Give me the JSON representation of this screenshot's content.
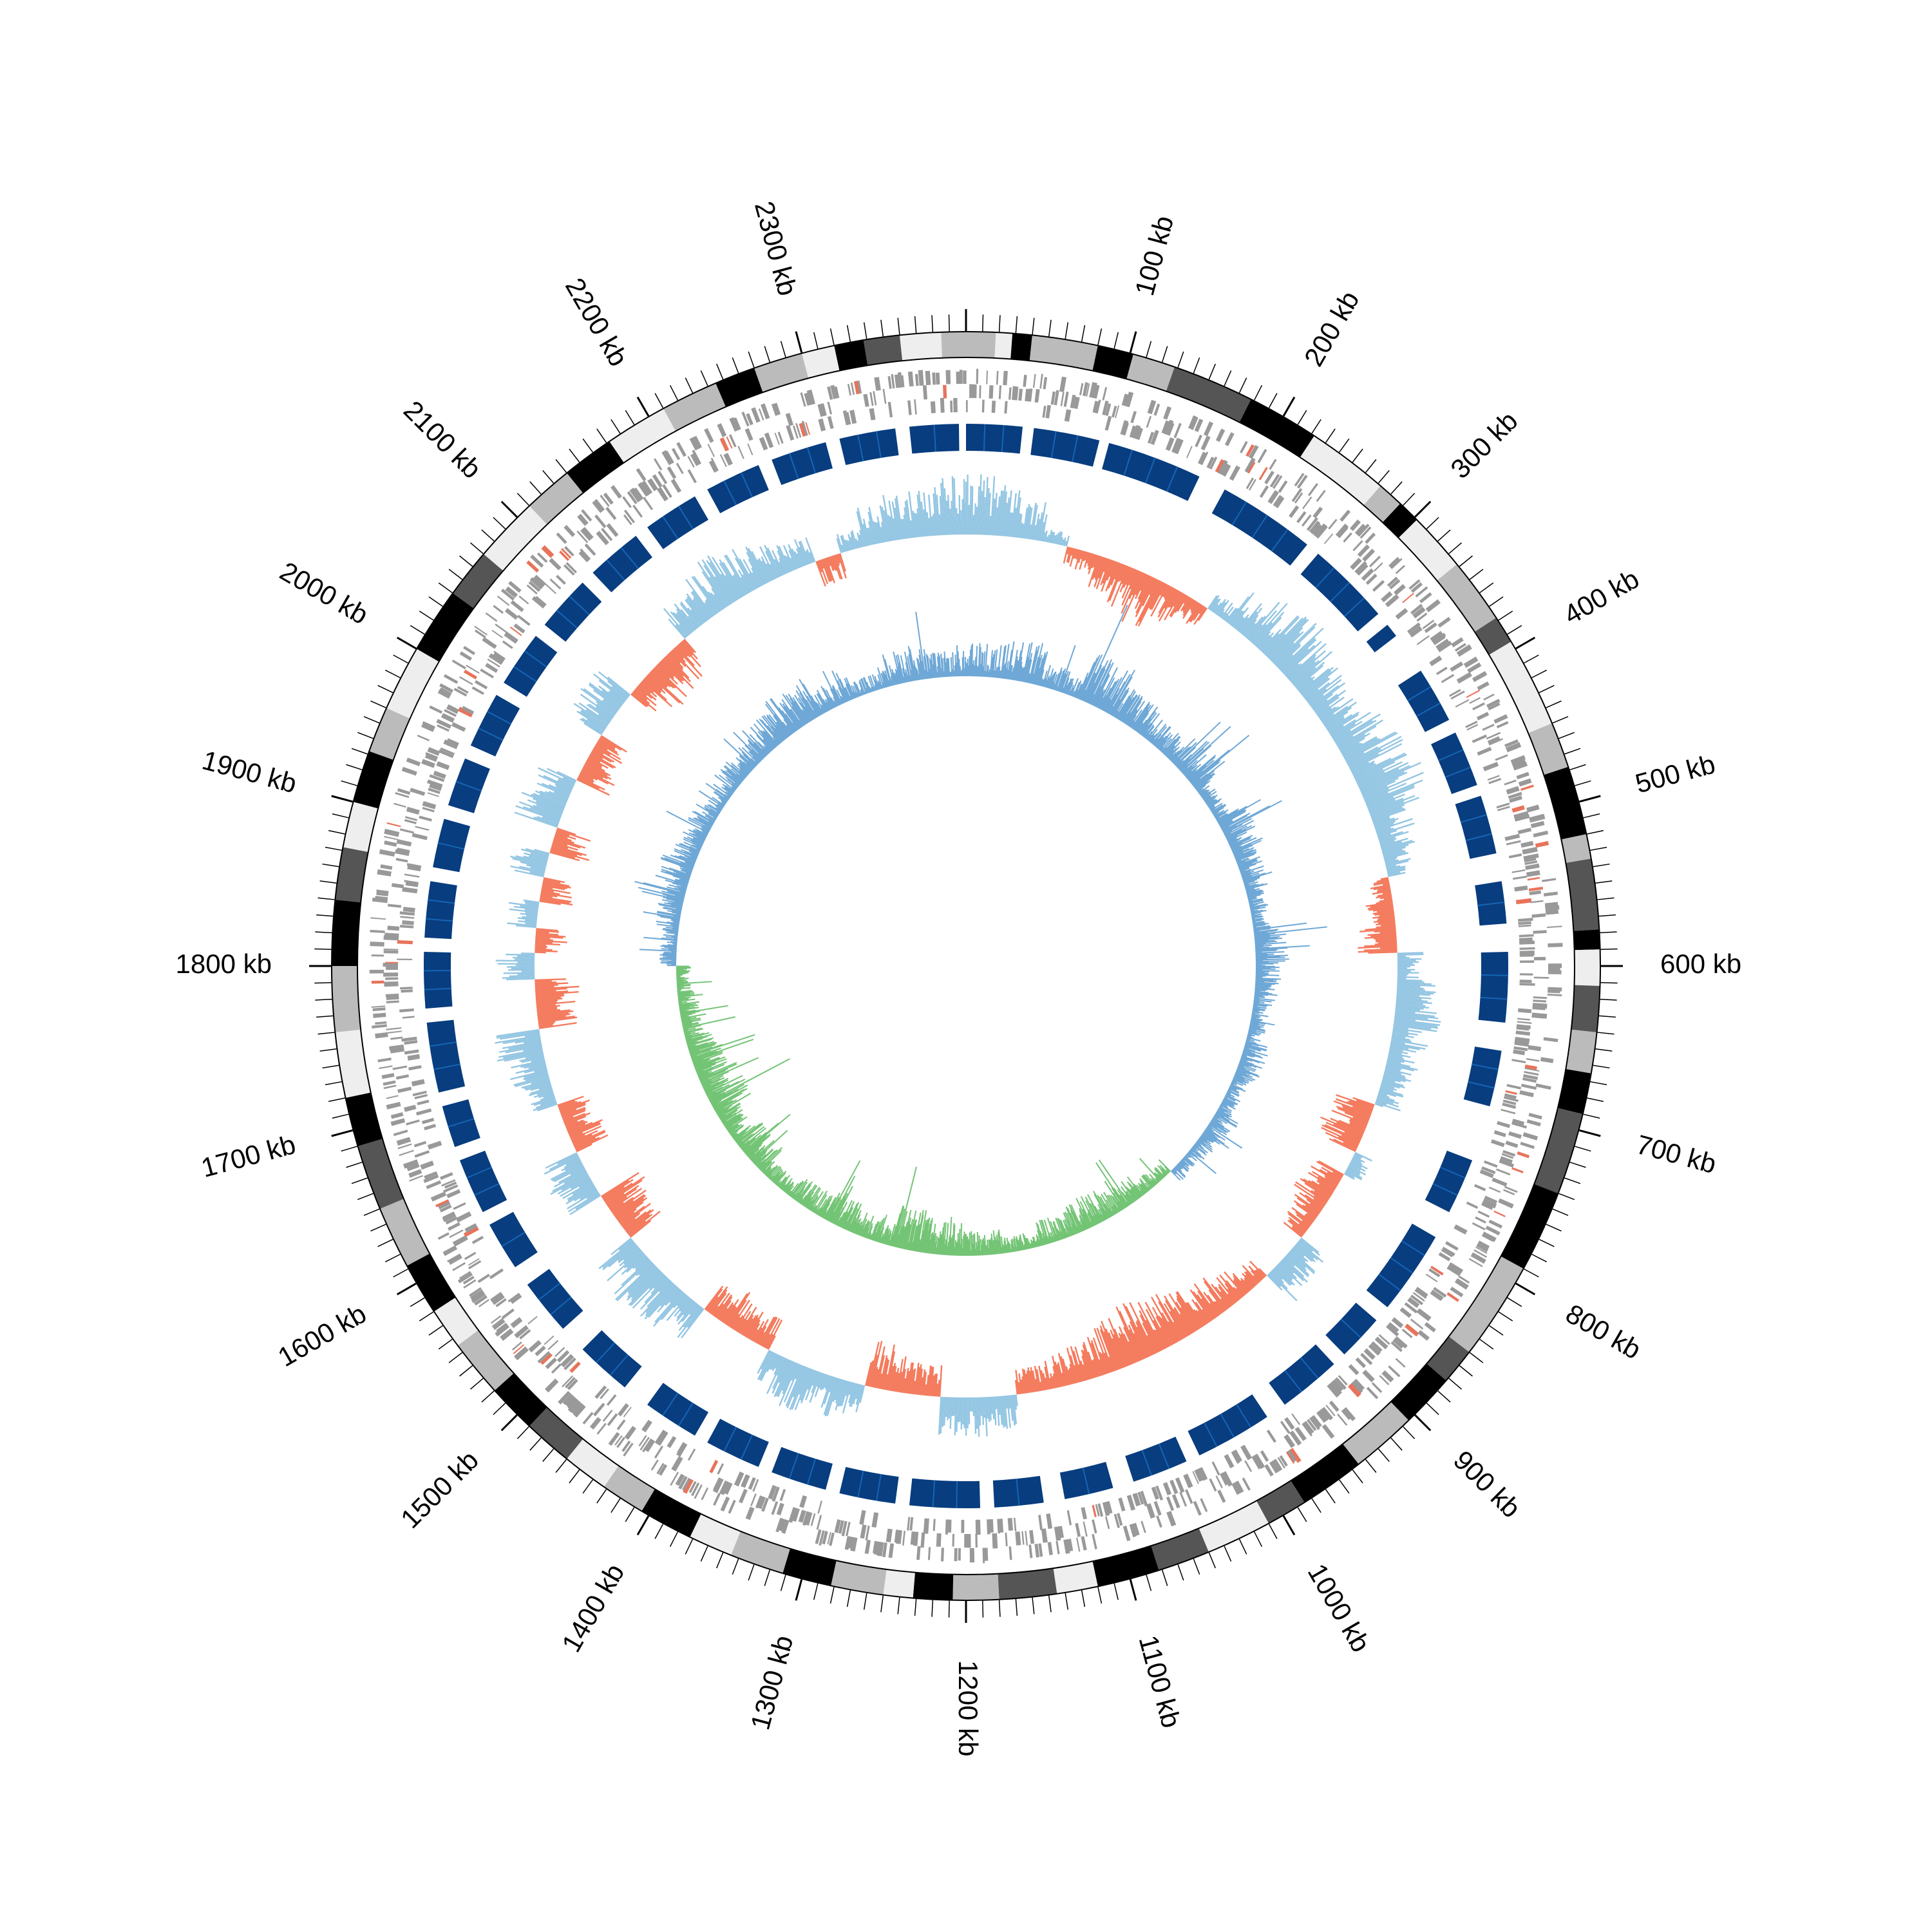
{
  "genome": {
    "length_kb": 2400,
    "tick_labels": [
      {
        "value_kb": 100,
        "text": "100 kb"
      },
      {
        "value_kb": 200,
        "text": "200 kb"
      },
      {
        "value_kb": 300,
        "text": "300 kb"
      },
      {
        "value_kb": 400,
        "text": "400 kb"
      },
      {
        "value_kb": 500,
        "text": "500 kb"
      },
      {
        "value_kb": 600,
        "text": "600 kb"
      },
      {
        "value_kb": 700,
        "text": "700 kb"
      },
      {
        "value_kb": 800,
        "text": "800 kb"
      },
      {
        "value_kb": 900,
        "text": "900 kb"
      },
      {
        "value_kb": 1000,
        "text": "1000 kb"
      },
      {
        "value_kb": 1100,
        "text": "1100 kb"
      },
      {
        "value_kb": 1200,
        "text": "1200 kb"
      },
      {
        "value_kb": 1300,
        "text": "1300 kb"
      },
      {
        "value_kb": 1400,
        "text": "1400 kb"
      },
      {
        "value_kb": 1500,
        "text": "1500 kb"
      },
      {
        "value_kb": 1600,
        "text": "1600 kb"
      },
      {
        "value_kb": 1700,
        "text": "1700 kb"
      },
      {
        "value_kb": 1800,
        "text": "1800 kb"
      },
      {
        "value_kb": 1900,
        "text": "1900 kb"
      },
      {
        "value_kb": 2000,
        "text": "2000 kb"
      },
      {
        "value_kb": 2100,
        "text": "2100 kb"
      },
      {
        "value_kb": 2200,
        "text": "2200 kb"
      },
      {
        "value_kb": 2300,
        "text": "2300 kb"
      }
    ],
    "minor_tick_step_kb": 10
  },
  "colors": {
    "ideogram_palette": [
      "#000000",
      "#555555",
      "#bbbbbb",
      "#eeeeee"
    ],
    "gene_features": "#999999",
    "gene_features_accent": "#e8735a",
    "blocks": "#083d7f",
    "blocks_alt": "#1565b5",
    "skew_positive": "#94c6e3",
    "skew_negative": "#f47b5e",
    "inner_positive": "#6fa8d6",
    "inner_negative": "#74c476"
  },
  "tracks": {
    "ideogram_bands": [
      [
        0,
        18,
        2
      ],
      [
        18,
        28,
        3
      ],
      [
        28,
        40,
        0
      ],
      [
        40,
        80,
        2
      ],
      [
        80,
        102,
        0
      ],
      [
        102,
        128,
        2
      ],
      [
        128,
        178,
        1
      ],
      [
        178,
        222,
        0
      ],
      [
        222,
        272,
        3
      ],
      [
        272,
        288,
        2
      ],
      [
        288,
        302,
        0
      ],
      [
        302,
        338,
        3
      ],
      [
        338,
        378,
        2
      ],
      [
        378,
        395,
        1
      ],
      [
        395,
        450,
        3
      ],
      [
        450,
        478,
        2
      ],
      [
        478,
        520,
        0
      ],
      [
        520,
        535,
        2
      ],
      [
        535,
        578,
        1
      ],
      [
        578,
        590,
        0
      ],
      [
        590,
        612,
        3
      ],
      [
        612,
        640,
        1
      ],
      [
        640,
        665,
        2
      ],
      [
        665,
        690,
        0
      ],
      [
        690,
        740,
        1
      ],
      [
        740,
        790,
        0
      ],
      [
        790,
        850,
        2
      ],
      [
        850,
        872,
        1
      ],
      [
        872,
        905,
        0
      ],
      [
        905,
        945,
        2
      ],
      [
        945,
        985,
        0
      ],
      [
        985,
        1010,
        1
      ],
      [
        1010,
        1050,
        3
      ],
      [
        1050,
        1082,
        1
      ],
      [
        1082,
        1120,
        0
      ],
      [
        1120,
        1145,
        3
      ],
      [
        1145,
        1180,
        1
      ],
      [
        1180,
        1208,
        2
      ],
      [
        1208,
        1232,
        0
      ],
      [
        1232,
        1250,
        3
      ],
      [
        1250,
        1282,
        2
      ],
      [
        1282,
        1312,
        0
      ],
      [
        1312,
        1345,
        2
      ],
      [
        1345,
        1372,
        3
      ],
      [
        1372,
        1405,
        0
      ],
      [
        1405,
        1432,
        2
      ],
      [
        1432,
        1460,
        3
      ],
      [
        1460,
        1490,
        1
      ],
      [
        1490,
        1520,
        0
      ],
      [
        1520,
        1555,
        2
      ],
      [
        1555,
        1580,
        3
      ],
      [
        1580,
        1612,
        0
      ],
      [
        1612,
        1650,
        2
      ],
      [
        1650,
        1690,
        1
      ],
      [
        1690,
        1720,
        0
      ],
      [
        1720,
        1760,
        3
      ],
      [
        1760,
        1800,
        2
      ],
      [
        1800,
        1840,
        0
      ],
      [
        1840,
        1872,
        1
      ],
      [
        1872,
        1900,
        3
      ],
      [
        1900,
        1932,
        0
      ],
      [
        1932,
        1960,
        2
      ],
      [
        1960,
        2000,
        3
      ],
      [
        2000,
        2040,
        0
      ],
      [
        2040,
        2070,
        1
      ],
      [
        2070,
        2110,
        3
      ],
      [
        2110,
        2140,
        2
      ],
      [
        2140,
        2172,
        0
      ],
      [
        2172,
        2210,
        3
      ],
      [
        2210,
        2245,
        2
      ],
      [
        2245,
        2270,
        0
      ],
      [
        2270,
        2300,
        2
      ],
      [
        2300,
        2320,
        3
      ],
      [
        2320,
        2338,
        0
      ],
      [
        2338,
        2360,
        1
      ],
      [
        2360,
        2385,
        3
      ],
      [
        2385,
        2400,
        2
      ]
    ],
    "block_segments": [
      [
        0,
        40
      ],
      [
        48,
        95
      ],
      [
        102,
        170
      ],
      [
        190,
        260
      ],
      [
        270,
        330
      ],
      [
        340,
        350
      ],
      [
        380,
        420
      ],
      [
        430,
        470
      ],
      [
        478,
        520
      ],
      [
        540,
        570
      ],
      [
        590,
        640
      ],
      [
        660,
        700
      ],
      [
        740,
        780
      ],
      [
        800,
        860
      ],
      [
        872,
        905
      ],
      [
        915,
        960
      ],
      [
        975,
        1030
      ],
      [
        1040,
        1080
      ],
      [
        1095,
        1130
      ],
      [
        1145,
        1180
      ],
      [
        1190,
        1240
      ],
      [
        1250,
        1290
      ],
      [
        1300,
        1340
      ],
      [
        1350,
        1390
      ],
      [
        1400,
        1440
      ],
      [
        1460,
        1500
      ],
      [
        1520,
        1560
      ],
      [
        1575,
        1610
      ],
      [
        1620,
        1660
      ],
      [
        1670,
        1700
      ],
      [
        1710,
        1760
      ],
      [
        1770,
        1810
      ],
      [
        1820,
        1860
      ],
      [
        1870,
        1905
      ],
      [
        1915,
        1950
      ],
      [
        1960,
        2000
      ],
      [
        2010,
        2050
      ],
      [
        2060,
        2100
      ],
      [
        2110,
        2150
      ],
      [
        2160,
        2200
      ],
      [
        2210,
        2250
      ],
      [
        2260,
        2300
      ],
      [
        2310,
        2350
      ],
      [
        2360,
        2395
      ]
    ],
    "skew_series": [
      0.9,
      0.8,
      0.6,
      0.2,
      -0.3,
      -0.5,
      -0.7,
      -0.8,
      -0.6,
      -0.4,
      0.3,
      0.6,
      0.8,
      0.9,
      0.8,
      0.7,
      0.6,
      0.8,
      0.9,
      1.0,
      0.8,
      0.6,
      0.4,
      -0.3,
      -0.5,
      -0.6,
      0.4,
      0.6,
      0.7,
      0.6,
      0.5,
      0.4,
      -0.6,
      -0.7,
      0.3,
      -0.5,
      -0.6,
      -0.4,
      0.5,
      0.6,
      -0.4,
      -0.5,
      -0.6,
      -0.7,
      -0.8,
      -0.9,
      -0.8,
      -0.7,
      -0.6,
      -0.5,
      -0.4,
      0.5,
      0.6,
      0.7,
      -0.5,
      -0.6,
      -0.7,
      0.5,
      0.6,
      0.7,
      0.6,
      -0.5,
      -0.6,
      -0.5,
      0.6,
      0.7,
      0.8,
      0.7,
      -0.6,
      -0.7,
      0.6,
      0.7,
      -0.6,
      -0.5,
      0.5,
      0.6,
      0.7,
      -0.6,
      -0.7,
      0.6,
      -0.5,
      0.5,
      -0.5,
      0.6,
      -0.6,
      0.7,
      0.6,
      -0.6,
      -0.5,
      0.6,
      0.7,
      -0.6,
      -0.7,
      -0.6,
      0.6,
      0.7,
      0.8,
      0.7,
      0.6,
      0.5,
      -0.4,
      0.3,
      0.6,
      0.7,
      0.8,
      0.9
    ],
    "inner_series": [
      0.4,
      0.5,
      0.3,
      0.6,
      0.4,
      0.3,
      0.5,
      0.2,
      0.4,
      0.3,
      0.2,
      0.4,
      0.3,
      0.2,
      0.3,
      0.2,
      0.3,
      0.2,
      -0.2,
      -0.3,
      -0.4,
      -0.3,
      -0.2,
      -0.3,
      -0.4,
      -0.5,
      -0.3,
      -0.4,
      -0.3,
      -0.2,
      -0.4,
      -0.3,
      -0.5,
      -0.4,
      -0.3,
      -0.2,
      0.2,
      0.3,
      0.4,
      0.3,
      0.2,
      0.3,
      0.4,
      0.5,
      0.3,
      0.2,
      0.4,
      0.3
    ]
  }
}
